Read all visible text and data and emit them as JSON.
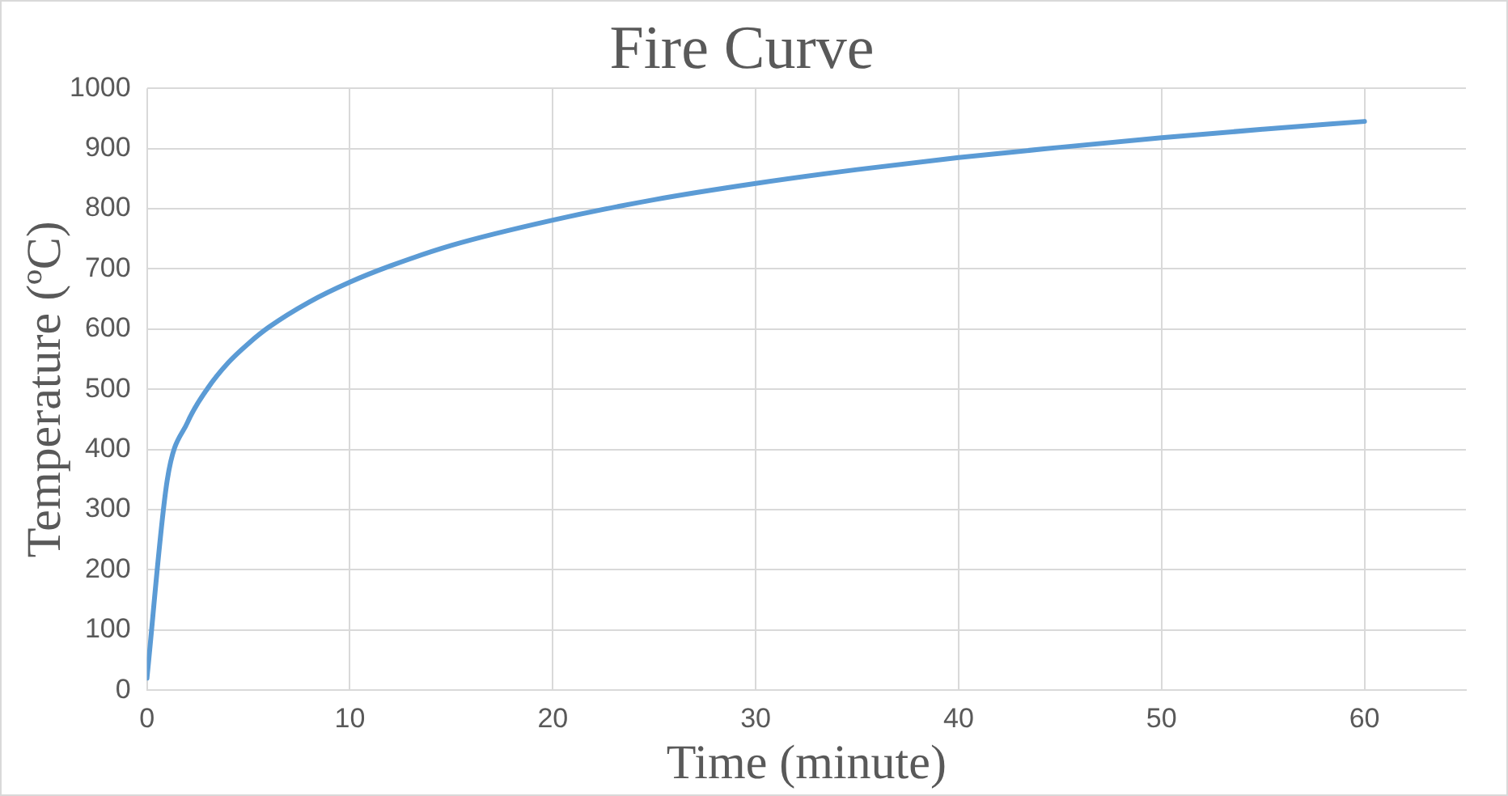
{
  "chart_data": {
    "type": "line",
    "title": "Fire Curve",
    "xlabel": "Time (minute)",
    "ylabel": "Temperature (ºC)",
    "x": [
      0,
      1,
      2,
      3,
      4,
      5,
      6,
      8,
      10,
      12,
      15,
      20,
      25,
      30,
      35,
      40,
      45,
      50,
      55,
      60
    ],
    "series": [
      {
        "color": "#5b9bd5",
        "values": [
          20,
          349,
          445,
          502,
          544,
          576,
          603,
          645,
          678,
          705,
          739,
          781,
          815,
          842,
          865,
          885,
          902,
          918,
          932,
          945
        ]
      }
    ],
    "xlim": [
      0,
      65
    ],
    "xticks": [
      0,
      10,
      20,
      30,
      40,
      50,
      60
    ],
    "ylim": [
      0,
      1000
    ],
    "yticks": [
      0,
      100,
      200,
      300,
      400,
      500,
      600,
      700,
      800,
      900,
      1000
    ],
    "grid": true,
    "marker": "none",
    "line_style": "solid"
  }
}
